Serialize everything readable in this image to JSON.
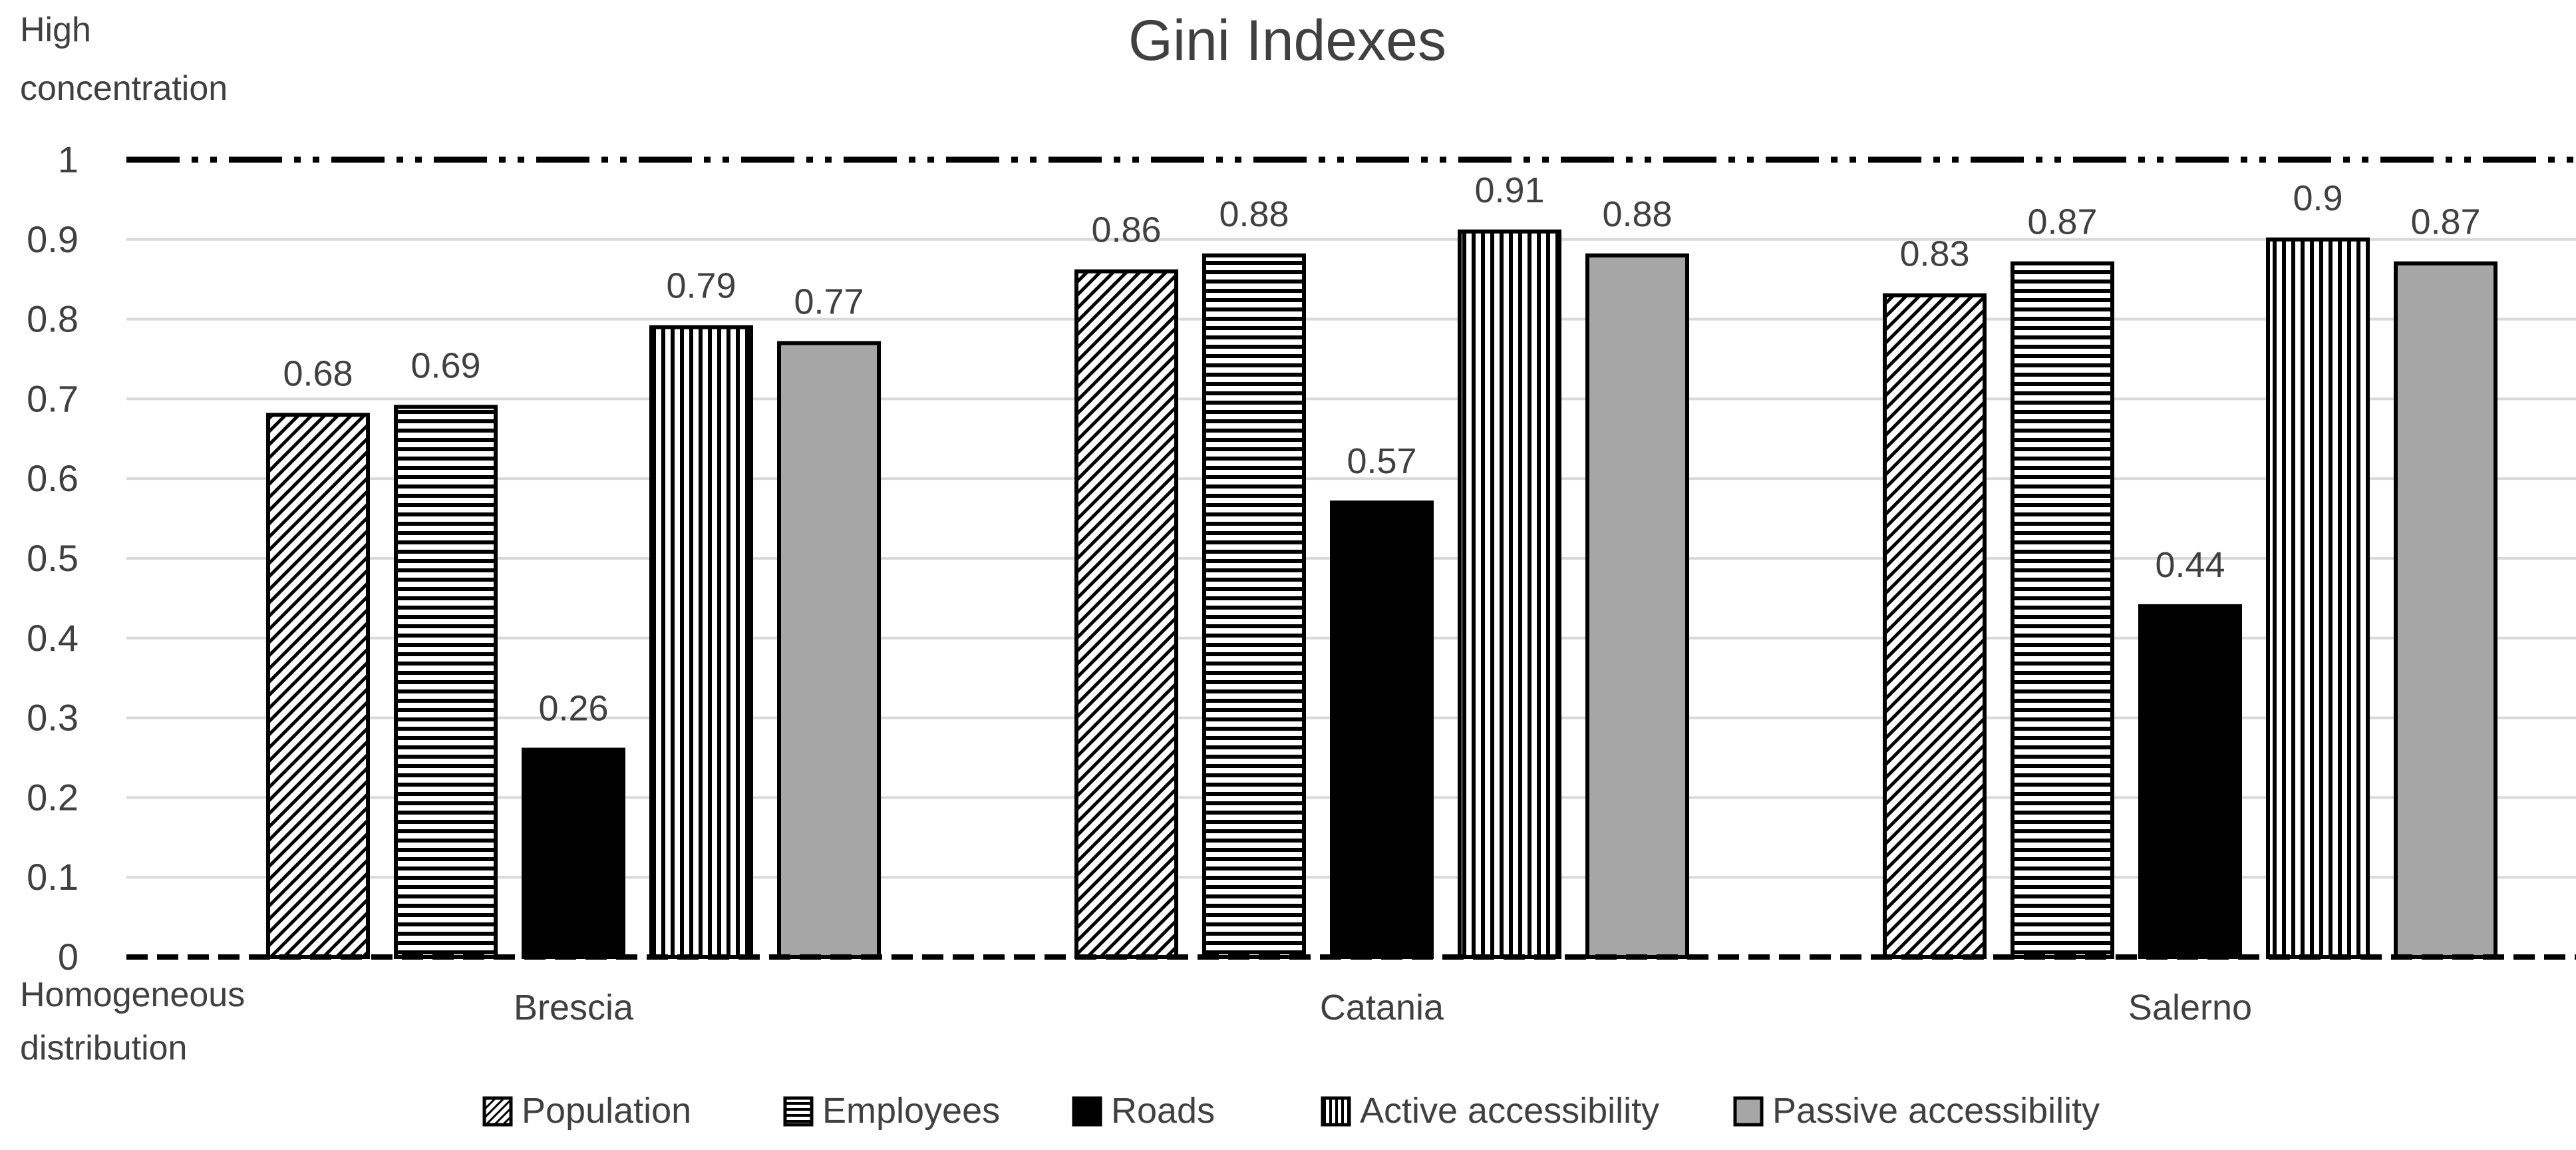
{
  "chart_data": {
    "type": "bar",
    "title": "Gini Indexes",
    "top_annotation": [
      "High",
      "concentration"
    ],
    "bottom_annotation": [
      "Homogeneous",
      "distribution"
    ],
    "categories": [
      "Brescia",
      "Catania",
      "Salerno"
    ],
    "series": [
      {
        "name": "Population",
        "values": [
          0.68,
          0.86,
          0.83
        ],
        "value_labels": [
          "0.68",
          "0.86",
          "0.83"
        ],
        "pattern": "diagonal",
        "color": "#ffffff"
      },
      {
        "name": "Employees",
        "values": [
          0.69,
          0.88,
          0.87
        ],
        "value_labels": [
          "0.69",
          "0.88",
          "0.87"
        ],
        "pattern": "horizontal",
        "color": "#ffffff"
      },
      {
        "name": "Roads",
        "values": [
          0.26,
          0.57,
          0.44
        ],
        "value_labels": [
          "0.26",
          "0.57",
          "0.44"
        ],
        "pattern": "solid",
        "color": "#000000"
      },
      {
        "name": "Active accessibility",
        "values": [
          0.79,
          0.91,
          0.9
        ],
        "value_labels": [
          "0.79",
          "0.91",
          "0.9"
        ],
        "pattern": "vertical",
        "color": "#ffffff"
      },
      {
        "name": "Passive accessibility",
        "values": [
          0.77,
          0.88,
          0.87
        ],
        "value_labels": [
          "0.77",
          "0.88",
          "0.87"
        ],
        "pattern": "solid",
        "color": "#a6a6a6"
      }
    ],
    "y_ticks": [
      0,
      0.1,
      0.2,
      0.3,
      0.4,
      0.5,
      0.6,
      0.7,
      0.8,
      0.9,
      1
    ],
    "y_tick_labels": [
      "0",
      "0.1",
      "0.2",
      "0.3",
      "0.4",
      "0.5",
      "0.6",
      "0.7",
      "0.8",
      "0.9",
      "1"
    ],
    "ylim": [
      0,
      1
    ],
    "grid": true,
    "legend_position": "bottom"
  }
}
